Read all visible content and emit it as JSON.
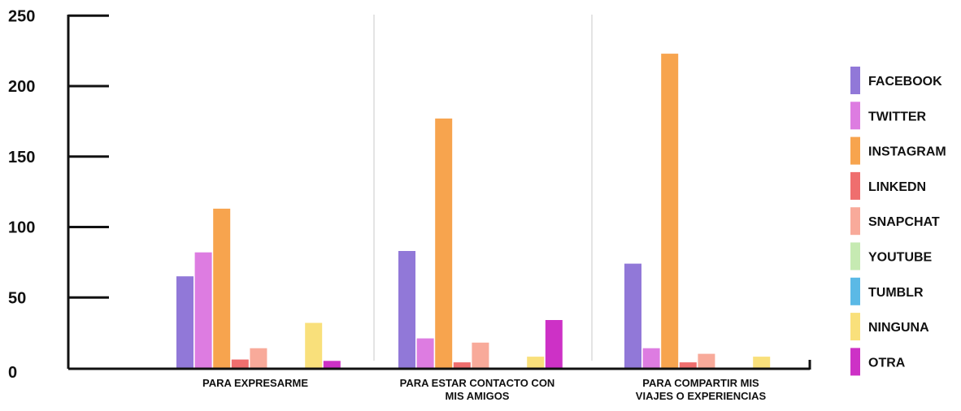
{
  "chart_data": {
    "type": "bar",
    "categories": [
      [
        "PARA EXPRESARME"
      ],
      [
        "PARA ESTAR CONTACTO CON",
        "MIS AMIGOS"
      ],
      [
        "PARA COMPARTIR MIS",
        "VIAJES O EXPERIENCIAS"
      ]
    ],
    "series": [
      {
        "name": "FACEBOOK",
        "color": "#9178d8",
        "values": [
          65,
          83,
          74
        ]
      },
      {
        "name": "TWITTER",
        "color": "#dd7ce1",
        "values": [
          82,
          21,
          14
        ]
      },
      {
        "name": "INSTAGRAM",
        "color": "#f7a44e",
        "values": [
          113,
          177,
          223
        ]
      },
      {
        "name": "LINKEDN",
        "color": "#ef6e6e",
        "values": [
          6,
          4,
          4
        ]
      },
      {
        "name": "SNAPCHAT",
        "color": "#f8aa9a",
        "values": [
          14,
          18,
          10
        ]
      },
      {
        "name": "YOUTUBE",
        "color": "#c6eab2",
        "values": [
          0,
          0,
          0
        ]
      },
      {
        "name": "TUMBLR",
        "color": "#5bb9e6",
        "values": [
          0,
          0,
          0
        ]
      },
      {
        "name": "NINGUNA",
        "color": "#f9e07b",
        "values": [
          32,
          8,
          8
        ]
      },
      {
        "name": "OTRA",
        "color": "#cd31c6",
        "values": [
          5,
          34,
          0
        ]
      }
    ],
    "yticks": [
      0,
      50,
      100,
      150,
      200,
      250
    ],
    "ylim": [
      0,
      250
    ],
    "grid": false,
    "legend_position": "right"
  }
}
